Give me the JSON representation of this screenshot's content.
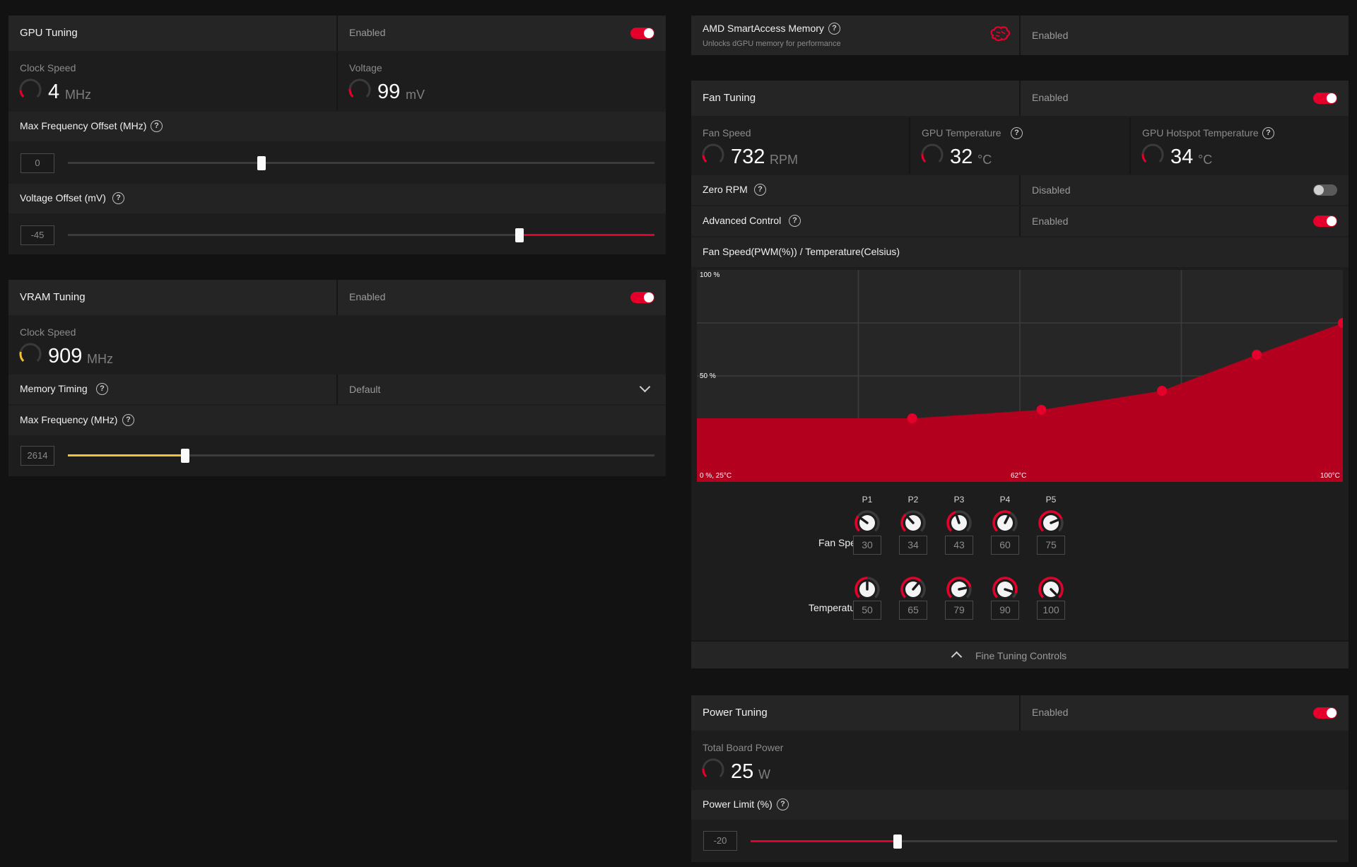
{
  "colors": {
    "accent": "#e4002b",
    "vram_accent": "#f2c230",
    "bg": "#121212",
    "panel": "#1d1d1d"
  },
  "gpu_tuning": {
    "title": "GPU Tuning",
    "state": "Enabled",
    "toggle_on": true,
    "clock_label": "Clock Speed",
    "clock_value": "4",
    "clock_unit": "MHz",
    "voltage_label": "Voltage",
    "voltage_value": "99",
    "voltage_unit": "mV",
    "max_freq_label": "Max Frequency Offset (MHz)",
    "max_freq_value": "0",
    "max_freq_level": 0.33,
    "volt_offset_label": "Voltage Offset (mV)",
    "volt_offset_value": "-45",
    "volt_offset_level": 0.77
  },
  "vram_tuning": {
    "title": "VRAM Tuning",
    "state": "Enabled",
    "toggle_on": true,
    "clock_label": "Clock Speed",
    "clock_value": "909",
    "clock_unit": "MHz",
    "memory_timing_label": "Memory Timing",
    "memory_timing_value": "Default",
    "max_freq_label": "Max Frequency (MHz)",
    "max_freq_value": "2614",
    "max_freq_level": 0.2
  },
  "smart_access": {
    "title": "AMD SmartAccess Memory",
    "subtitle": "Unlocks dGPU memory for performance",
    "state": "Enabled",
    "icon": "brain-icon"
  },
  "fan_tuning": {
    "title": "Fan Tuning",
    "state": "Enabled",
    "toggle_on": true,
    "fan_speed_label": "Fan Speed",
    "fan_speed_value": "732",
    "fan_speed_unit": "RPM",
    "gpu_temp_label": "GPU Temperature",
    "gpu_temp_value": "32",
    "gpu_temp_unit": "°C",
    "hotspot_label": "GPU Hotspot Temperature",
    "hotspot_value": "34",
    "hotspot_unit": "°C",
    "zero_rpm_label": "Zero RPM",
    "zero_rpm_state": "Disabled",
    "advanced_label": "Advanced Control",
    "advanced_state": "Enabled",
    "curve_title": "Fan Speed(PWM(%)) / Temperature(Celsius)",
    "points_header": [
      "P1",
      "P2",
      "P3",
      "P4",
      "P5"
    ],
    "fan_speed_row_label": "Fan Speed",
    "temperature_row_label": "Temperature",
    "fan_speeds": [
      "30",
      "34",
      "43",
      "60",
      "75"
    ],
    "temperatures": [
      "50",
      "65",
      "79",
      "90",
      "100"
    ],
    "fine_tuning_label": "Fine Tuning Controls"
  },
  "chart_data": {
    "type": "area",
    "title": "Fan Speed(PWM(%)) / Temperature(Celsius)",
    "series": [
      {
        "x": [
          25,
          50,
          65,
          79,
          90,
          100
        ],
        "y": [
          30,
          30,
          34,
          43,
          60,
          75
        ]
      }
    ],
    "xlim": [
      25,
      100
    ],
    "ylim": [
      0,
      100
    ],
    "y_tick_labels": [
      "100 %",
      "50 %"
    ],
    "x_tick_labels": [
      "0 %, 25°C",
      "62°C",
      "100°C"
    ],
    "grid": true
  },
  "power_tuning": {
    "title": "Power Tuning",
    "state": "Enabled",
    "toggle_on": true,
    "tbp_label": "Total Board Power",
    "tbp_value": "25",
    "tbp_unit": "W",
    "limit_label": "Power Limit (%)",
    "limit_value": "-20",
    "limit_level": 0.25
  }
}
